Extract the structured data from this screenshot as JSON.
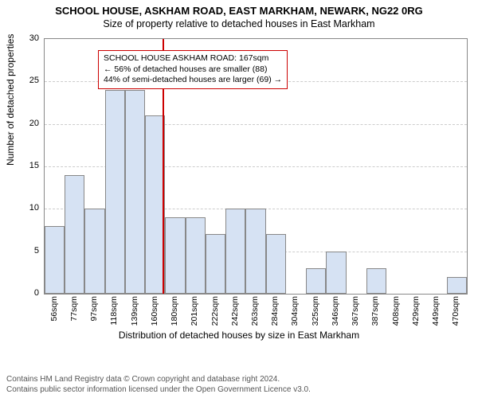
{
  "title_main": "SCHOOL HOUSE, ASKHAM ROAD, EAST MARKHAM, NEWARK, NG22 0RG",
  "title_sub": "Size of property relative to detached houses in East Markham",
  "ylabel": "Number of detached properties",
  "xlabel": "Distribution of detached houses by size in East Markham",
  "chart": {
    "type": "bar",
    "ylim": [
      0,
      30
    ],
    "ytick_step": 5,
    "bar_color": "#d6e2f3",
    "bar_border": "#888888",
    "grid_color": "#cccccc",
    "background_color": "#ffffff",
    "reference_line_color": "#cc0000",
    "reference_value_sqm": 167,
    "categories": [
      "56sqm",
      "77sqm",
      "97sqm",
      "118sqm",
      "139sqm",
      "160sqm",
      "180sqm",
      "201sqm",
      "222sqm",
      "242sqm",
      "263sqm",
      "284sqm",
      "304sqm",
      "325sqm",
      "346sqm",
      "367sqm",
      "387sqm",
      "408sqm",
      "429sqm",
      "449sqm",
      "470sqm"
    ],
    "values": [
      8,
      14,
      10,
      24,
      24,
      21,
      9,
      9,
      7,
      10,
      10,
      7,
      0,
      3,
      5,
      0,
      3,
      0,
      0,
      0,
      2
    ]
  },
  "annotation": {
    "line1": "SCHOOL HOUSE ASKHAM ROAD: 167sqm",
    "line2": "← 56% of detached houses are smaller (88)",
    "line3": "44% of semi-detached houses are larger (69) →",
    "border_color": "#cc0000"
  },
  "footer": {
    "line1": "Contains HM Land Registry data © Crown copyright and database right 2024.",
    "line2": "Contains public sector information licensed under the Open Government Licence v3.0."
  }
}
